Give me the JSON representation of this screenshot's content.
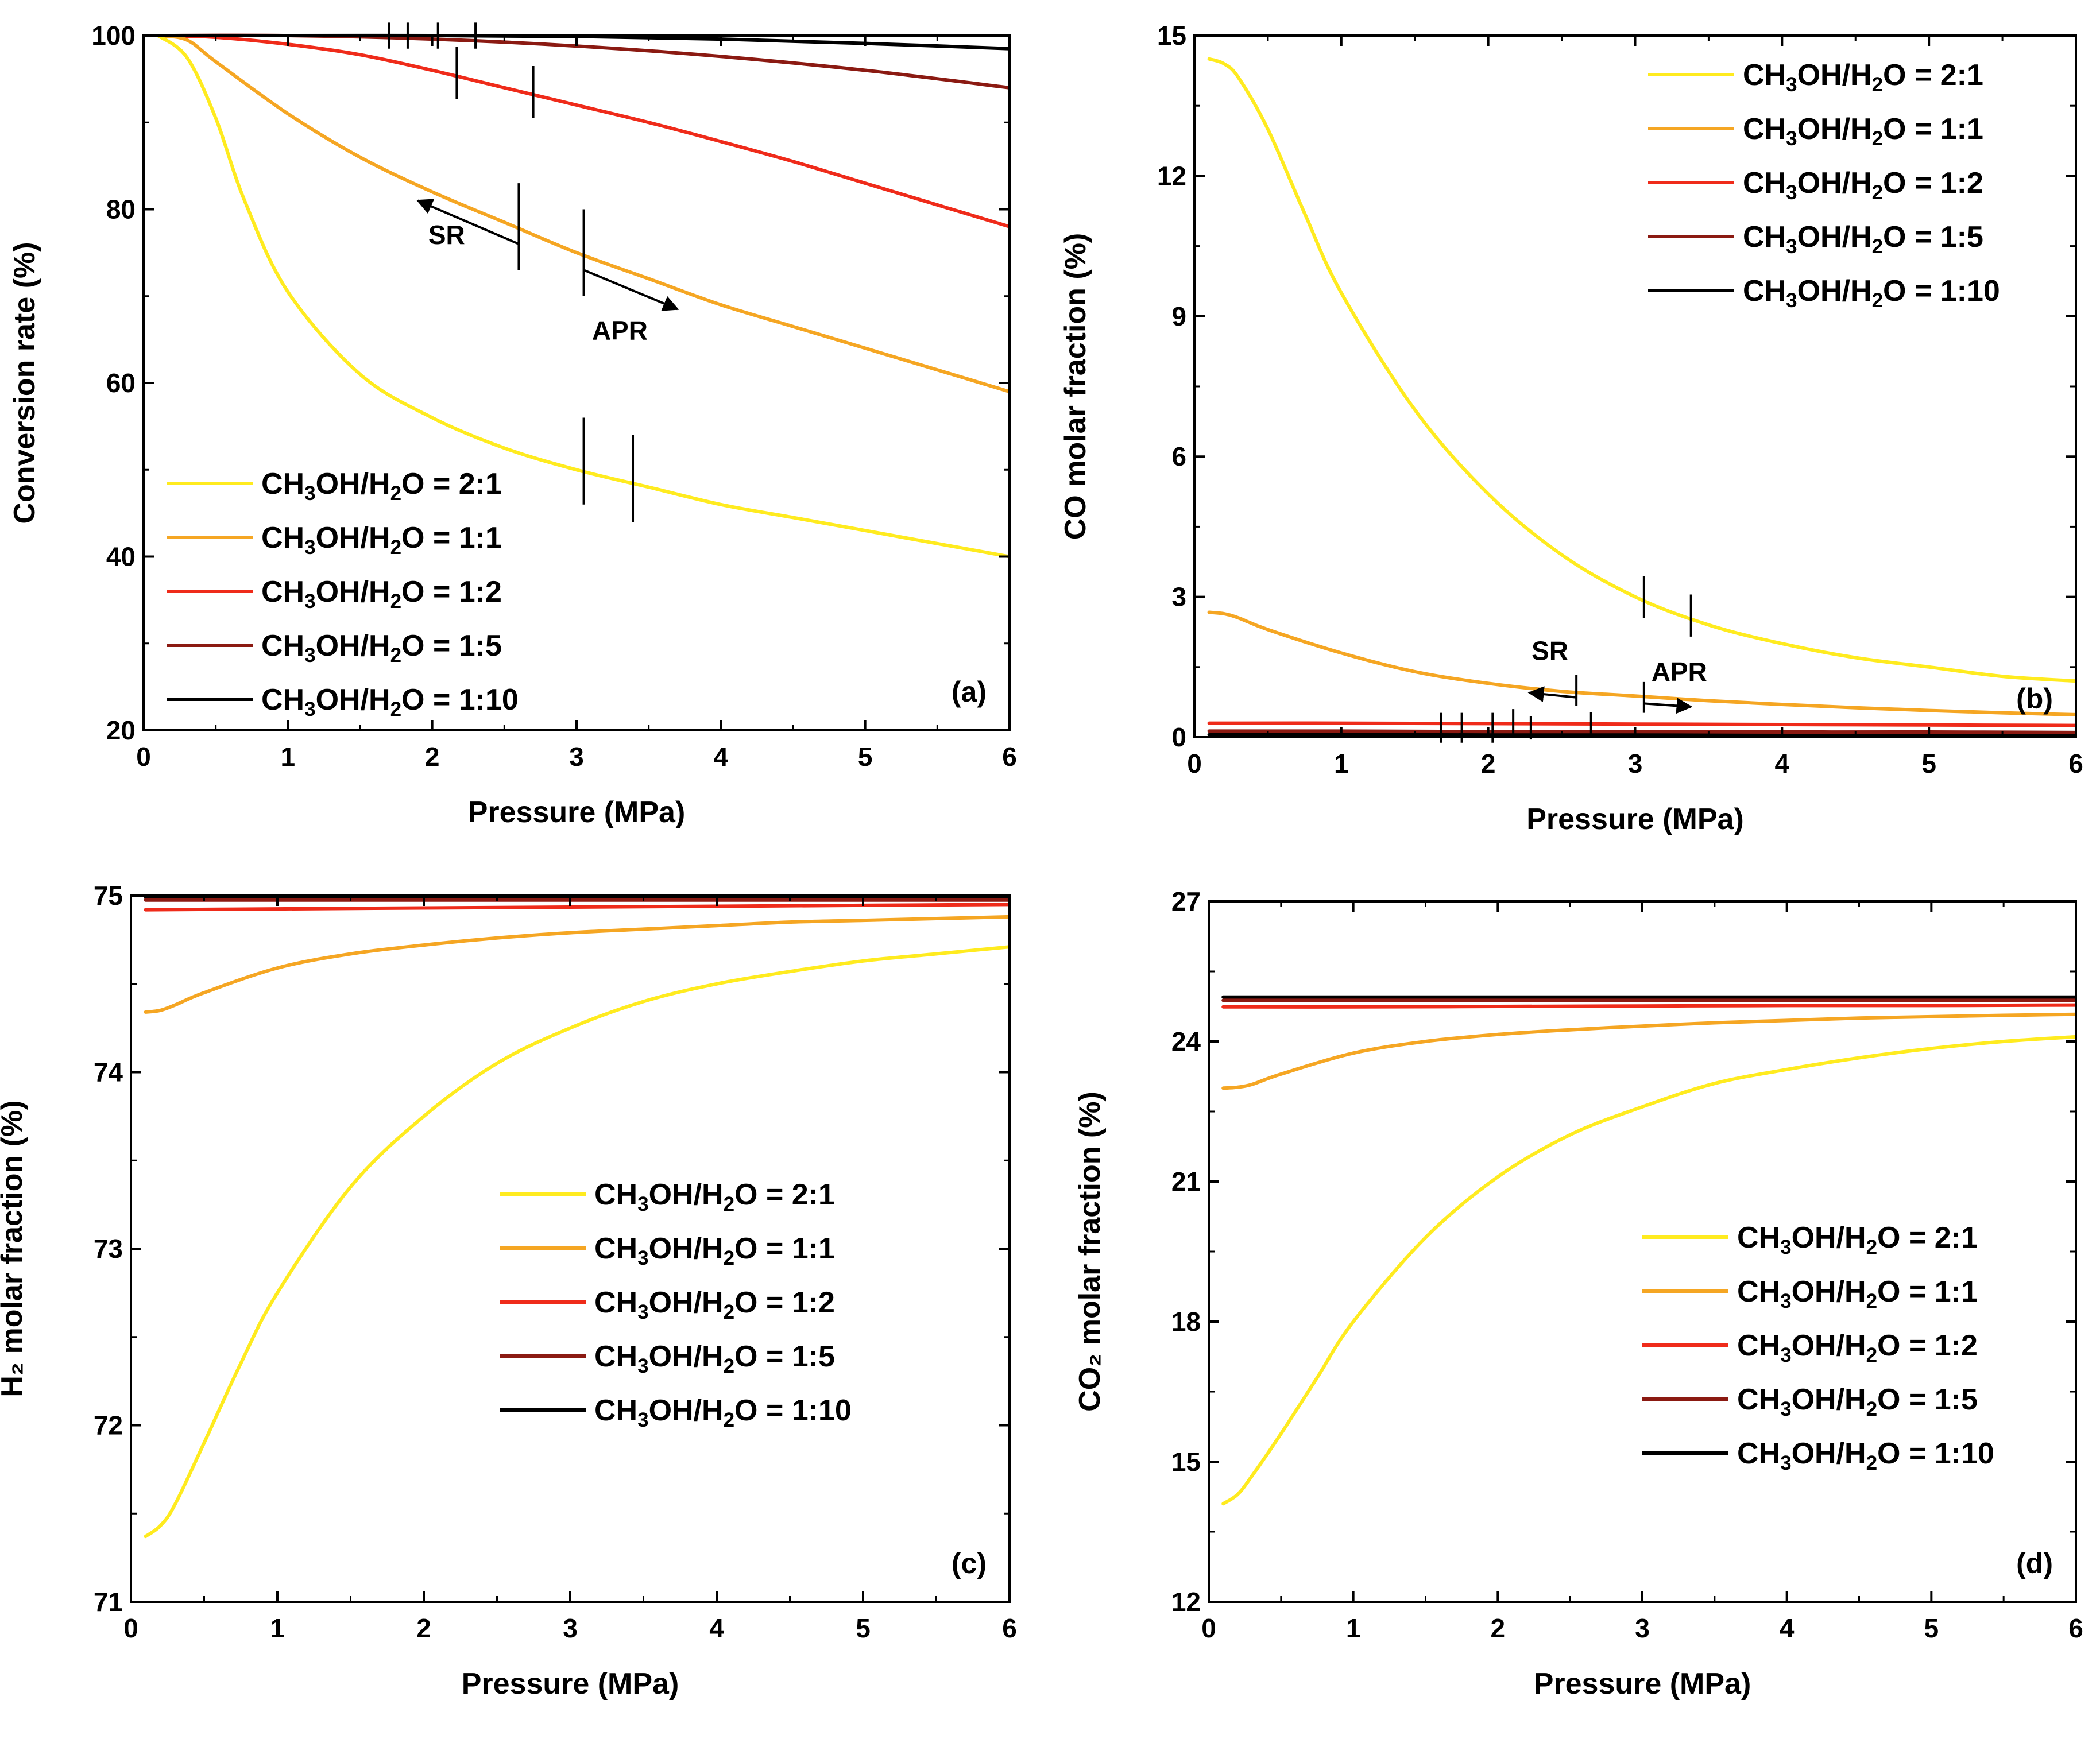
{
  "figure": {
    "panel_count": 4
  },
  "colors": {
    "2:1": "#ffeb1f",
    "1:1": "#f5a623",
    "1:2": "#ef2b1a",
    "1:5": "#8b1a12",
    "1:10": "#000000"
  },
  "chart_data": [
    {
      "id": "a",
      "type": "line",
      "panel_label": "(a)",
      "xlabel": "Pressure (MPa)",
      "ylabel": "Conversion rate (%)",
      "xlim": [
        0,
        6
      ],
      "ylim": [
        20,
        100
      ],
      "xticks": [
        0,
        1,
        2,
        3,
        4,
        5,
        6
      ],
      "yticks": [
        20,
        40,
        60,
        80,
        100
      ],
      "legend_position": "bottom-left",
      "series": [
        {
          "key": "2:1",
          "name": "CH3OH/H2O = 2:1",
          "x": [
            0.1,
            0.3,
            0.5,
            0.7,
            1,
            1.5,
            2,
            2.5,
            3,
            3.5,
            4,
            4.5,
            5,
            5.5,
            6
          ],
          "y": [
            100,
            97.5,
            90.5,
            81,
            70.5,
            61,
            56,
            52.5,
            50,
            48,
            46,
            44.5,
            43,
            41.5,
            40
          ]
        },
        {
          "key": "1:1",
          "name": "CH3OH/H2O = 1:1",
          "x": [
            0.1,
            0.3,
            0.5,
            1,
            1.5,
            2,
            2.5,
            3,
            3.5,
            4,
            4.5,
            5,
            5.5,
            6
          ],
          "y": [
            100,
            99.5,
            97,
            91,
            86,
            82,
            78.5,
            75,
            72,
            69,
            66.5,
            64,
            61.5,
            59
          ]
        },
        {
          "key": "1:2",
          "name": "CH3OH/H2O = 1:2",
          "x": [
            0.1,
            0.5,
            1,
            1.5,
            2,
            2.5,
            3,
            3.5,
            4,
            4.5,
            5,
            5.5,
            6
          ],
          "y": [
            100,
            99.8,
            99,
            97.8,
            96,
            94,
            92,
            90,
            87.8,
            85.5,
            83,
            80.5,
            78
          ]
        },
        {
          "key": "1:5",
          "name": "CH3OH/H2O = 1:5",
          "x": [
            0.1,
            1,
            2,
            3,
            4,
            5,
            6
          ],
          "y": [
            100,
            100,
            99.6,
            98.8,
            97.6,
            96,
            94
          ]
        },
        {
          "key": "1:10",
          "name": "CH3OH/H2O = 1:10",
          "x": [
            0.1,
            1,
            2,
            3,
            4,
            5,
            6
          ],
          "y": [
            100,
            100,
            100,
            99.9,
            99.6,
            99.1,
            98.5
          ]
        }
      ],
      "markers": [
        {
          "x": 1.7,
          "y": 100,
          "half": 1.5
        },
        {
          "x": 1.83,
          "y": 100,
          "half": 1.5
        },
        {
          "x": 2.04,
          "y": 100,
          "half": 1.5
        },
        {
          "x": 2.3,
          "y": 100,
          "half": 1.5
        },
        {
          "x": 2.17,
          "y": 95.7,
          "half": 3
        },
        {
          "x": 2.7,
          "y": 93.5,
          "half": 3
        },
        {
          "x": 2.6,
          "y": 78,
          "half": 5
        },
        {
          "x": 3.05,
          "y": 75,
          "half": 5
        },
        {
          "x": 3.05,
          "y": 51,
          "half": 5
        },
        {
          "x": 3.39,
          "y": 49,
          "half": 5
        }
      ],
      "arrows": [
        {
          "from": [
            2.6,
            76
          ],
          "to": [
            1.9,
            81
          ]
        },
        {
          "from": [
            3.05,
            73
          ],
          "to": [
            3.7,
            68.5
          ]
        }
      ],
      "annotations": [
        {
          "text": "SR",
          "x": 2.1,
          "y": 76
        },
        {
          "text": "APR",
          "x": 3.3,
          "y": 65
        }
      ]
    },
    {
      "id": "b",
      "type": "line",
      "panel_label": "(b)",
      "xlabel": "Pressure (MPa)",
      "ylabel": "CO molar fraction (%)",
      "xlim": [
        0,
        6
      ],
      "ylim": [
        0,
        15
      ],
      "xticks": [
        0,
        1,
        2,
        3,
        4,
        5,
        6
      ],
      "yticks": [
        0,
        3,
        6,
        9,
        12,
        15
      ],
      "legend_position": "top-right",
      "series": [
        {
          "key": "2:1",
          "name": "CH3OH/H2O = 2:1",
          "x": [
            0.1,
            0.2,
            0.3,
            0.5,
            0.75,
            1,
            1.5,
            2,
            2.5,
            3,
            3.5,
            4,
            4.5,
            5,
            5.5,
            6
          ],
          "y": [
            14.5,
            14.4,
            14.1,
            13,
            11.2,
            9.5,
            7,
            5.2,
            3.9,
            3,
            2.4,
            2,
            1.7,
            1.5,
            1.3,
            1.2
          ]
        },
        {
          "key": "1:1",
          "name": "CH3OH/H2O = 1:1",
          "x": [
            0.1,
            0.2,
            0.3,
            0.5,
            1,
            1.5,
            2,
            2.5,
            3,
            3.5,
            4,
            4.5,
            5,
            5.5,
            6
          ],
          "y": [
            2.67,
            2.64,
            2.55,
            2.3,
            1.8,
            1.4,
            1.15,
            0.98,
            0.88,
            0.78,
            0.7,
            0.63,
            0.57,
            0.52,
            0.48
          ]
        },
        {
          "key": "1:2",
          "name": "CH3OH/H2O = 1:2",
          "x": [
            0.1,
            1,
            2,
            3,
            4,
            5,
            6
          ],
          "y": [
            0.3,
            0.3,
            0.29,
            0.28,
            0.27,
            0.26,
            0.25
          ]
        },
        {
          "key": "1:5",
          "name": "CH3OH/H2O = 1:5",
          "x": [
            0.1,
            1,
            2,
            3,
            4,
            5,
            6
          ],
          "y": [
            0.13,
            0.13,
            0.12,
            0.12,
            0.11,
            0.11,
            0.1
          ]
        },
        {
          "key": "1:10",
          "name": "CH3OH/H2O = 1:10",
          "x": [
            0.1,
            1,
            2,
            3,
            4,
            5,
            6
          ],
          "y": [
            0.05,
            0.05,
            0.05,
            0.05,
            0.05,
            0.05,
            0.05
          ]
        }
      ],
      "markers": [
        {
          "x": 3.06,
          "y": 3.0,
          "half": 0.45
        },
        {
          "x": 3.38,
          "y": 2.6,
          "half": 0.45
        },
        {
          "x": 2.6,
          "y": 1.0,
          "half": 0.33
        },
        {
          "x": 3.06,
          "y": 0.85,
          "half": 0.33
        },
        {
          "x": 1.68,
          "y": 0.2,
          "half": 0.32
        },
        {
          "x": 1.82,
          "y": 0.2,
          "half": 0.32
        },
        {
          "x": 2.03,
          "y": 0.2,
          "half": 0.32
        },
        {
          "x": 2.17,
          "y": 0.3,
          "half": 0.3
        },
        {
          "x": 2.29,
          "y": 0.2,
          "half": 0.25
        },
        {
          "x": 2.7,
          "y": 0.28,
          "half": 0.25
        }
      ],
      "arrows": [
        {
          "from": [
            2.6,
            0.85
          ],
          "to": [
            2.28,
            0.95
          ]
        },
        {
          "from": [
            3.06,
            0.72
          ],
          "to": [
            3.38,
            0.65
          ]
        }
      ],
      "annotations": [
        {
          "text": "SR",
          "x": 2.42,
          "y": 1.65
        },
        {
          "text": "APR",
          "x": 3.3,
          "y": 1.2
        }
      ]
    },
    {
      "id": "c",
      "type": "line",
      "panel_label": "(c)",
      "xlabel": "Pressure (MPa)",
      "ylabel": "H₂ molar fraction (%)",
      "xlim": [
        0,
        6
      ],
      "ylim": [
        71,
        75
      ],
      "xticks": [
        0,
        1,
        2,
        3,
        4,
        5,
        6
      ],
      "yticks": [
        71,
        72,
        73,
        74,
        75
      ],
      "legend_position": "center-right",
      "series": [
        {
          "key": "2:1",
          "name": "CH3OH/H2O = 2:1",
          "x": [
            0.1,
            0.2,
            0.3,
            0.5,
            0.75,
            1,
            1.5,
            2,
            2.5,
            3,
            3.5,
            4,
            4.5,
            5,
            5.5,
            6
          ],
          "y": [
            71.37,
            71.43,
            71.55,
            71.9,
            72.35,
            72.75,
            73.35,
            73.75,
            74.05,
            74.25,
            74.4,
            74.5,
            74.57,
            74.63,
            74.67,
            74.71
          ]
        },
        {
          "key": "1:1",
          "name": "CH3OH/H2O = 1:1",
          "x": [
            0.1,
            0.2,
            0.3,
            0.5,
            1,
            1.5,
            2,
            2.5,
            3,
            3.5,
            4,
            4.5,
            5,
            5.5,
            6
          ],
          "y": [
            74.34,
            74.35,
            74.38,
            74.45,
            74.59,
            74.67,
            74.72,
            74.76,
            74.79,
            74.81,
            74.83,
            74.85,
            74.86,
            74.87,
            74.88
          ]
        },
        {
          "key": "1:2",
          "name": "CH3OH/H2O = 1:2",
          "x": [
            0.1,
            1,
            2,
            3,
            4,
            5,
            6
          ],
          "y": [
            74.92,
            74.925,
            74.93,
            74.935,
            74.94,
            74.945,
            74.95
          ]
        },
        {
          "key": "1:5",
          "name": "CH3OH/H2O = 1:5",
          "x": [
            0.1,
            1,
            2,
            3,
            4,
            5,
            6
          ],
          "y": [
            74.975,
            74.975,
            74.975,
            74.975,
            74.975,
            74.975,
            74.975
          ]
        },
        {
          "key": "1:10",
          "name": "CH3OH/H2O = 1:10",
          "x": [
            0.1,
            1,
            2,
            3,
            4,
            5,
            6
          ],
          "y": [
            74.99,
            74.99,
            74.99,
            74.99,
            74.99,
            74.99,
            74.99
          ]
        }
      ],
      "markers": [],
      "arrows": [],
      "annotations": []
    },
    {
      "id": "d",
      "type": "line",
      "panel_label": "(d)",
      "xlabel": "Pressure (MPa)",
      "ylabel": "CO₂ molar fraction (%)",
      "xlim": [
        0,
        6
      ],
      "ylim": [
        12,
        27
      ],
      "xticks": [
        0,
        1,
        2,
        3,
        4,
        5,
        6
      ],
      "yticks": [
        12,
        15,
        18,
        21,
        24,
        27
      ],
      "legend_position": "center-right",
      "series": [
        {
          "key": "2:1",
          "name": "CH3OH/H2O = 2:1",
          "x": [
            0.1,
            0.2,
            0.3,
            0.5,
            0.75,
            1,
            1.5,
            2,
            2.5,
            3,
            3.5,
            4,
            4.5,
            5,
            5.5,
            6
          ],
          "y": [
            14.1,
            14.3,
            14.7,
            15.6,
            16.8,
            18,
            19.8,
            21.1,
            22,
            22.6,
            23.1,
            23.4,
            23.65,
            23.85,
            24,
            24.1
          ]
        },
        {
          "key": "1:1",
          "name": "CH3OH/H2O = 1:1",
          "x": [
            0.1,
            0.2,
            0.3,
            0.5,
            1,
            1.5,
            2,
            2.5,
            3,
            3.5,
            4,
            4.5,
            5,
            5.5,
            6
          ],
          "y": [
            23,
            23.02,
            23.08,
            23.3,
            23.75,
            24,
            24.15,
            24.25,
            24.33,
            24.4,
            24.45,
            24.5,
            24.53,
            24.56,
            24.58
          ]
        },
        {
          "key": "1:2",
          "name": "CH3OH/H2O = 1:2",
          "x": [
            0.1,
            1,
            2,
            3,
            4,
            5,
            6
          ],
          "y": [
            24.74,
            24.74,
            24.75,
            24.76,
            24.77,
            24.77,
            24.78
          ]
        },
        {
          "key": "1:5",
          "name": "CH3OH/H2O = 1:5",
          "x": [
            0.1,
            1,
            2,
            3,
            4,
            5,
            6
          ],
          "y": [
            24.88,
            24.88,
            24.88,
            24.88,
            24.88,
            24.88,
            24.88
          ]
        },
        {
          "key": "1:10",
          "name": "CH3OH/H2O = 1:10",
          "x": [
            0.1,
            1,
            2,
            3,
            4,
            5,
            6
          ],
          "y": [
            24.95,
            24.95,
            24.95,
            24.95,
            24.95,
            24.95,
            24.95
          ]
        }
      ],
      "markers": [],
      "arrows": [],
      "annotations": []
    }
  ]
}
